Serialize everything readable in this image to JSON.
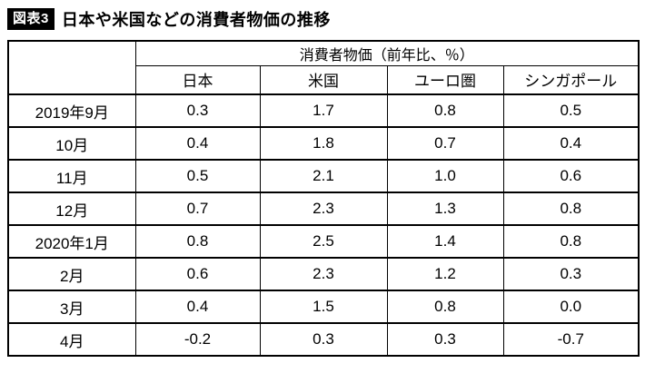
{
  "header": {
    "badge": "図表3",
    "title": "日本や米国などの消費者物価の推移"
  },
  "chart_data": {
    "type": "table",
    "title": "消費者物価（前年比、％）",
    "columns": [
      "日本",
      "米国",
      "ユーロ圏",
      "シンガポール"
    ],
    "rows": [
      {
        "label": "2019年9月",
        "values": [
          "0.3",
          "1.7",
          "0.8",
          "0.5"
        ]
      },
      {
        "label": "10月",
        "values": [
          "0.4",
          "1.8",
          "0.7",
          "0.4"
        ]
      },
      {
        "label": "11月",
        "values": [
          "0.5",
          "2.1",
          "1.0",
          "0.6"
        ]
      },
      {
        "label": "12月",
        "values": [
          "0.7",
          "2.3",
          "1.3",
          "0.8"
        ]
      },
      {
        "label": "2020年1月",
        "values": [
          "0.8",
          "2.5",
          "1.4",
          "0.8"
        ]
      },
      {
        "label": "2月",
        "values": [
          "0.6",
          "2.3",
          "1.2",
          "0.3"
        ]
      },
      {
        "label": "3月",
        "values": [
          "0.4",
          "1.5",
          "0.8",
          "0.0"
        ]
      },
      {
        "label": "4月",
        "values": [
          "-0.2",
          "0.3",
          "0.3",
          "-0.7"
        ]
      }
    ]
  }
}
